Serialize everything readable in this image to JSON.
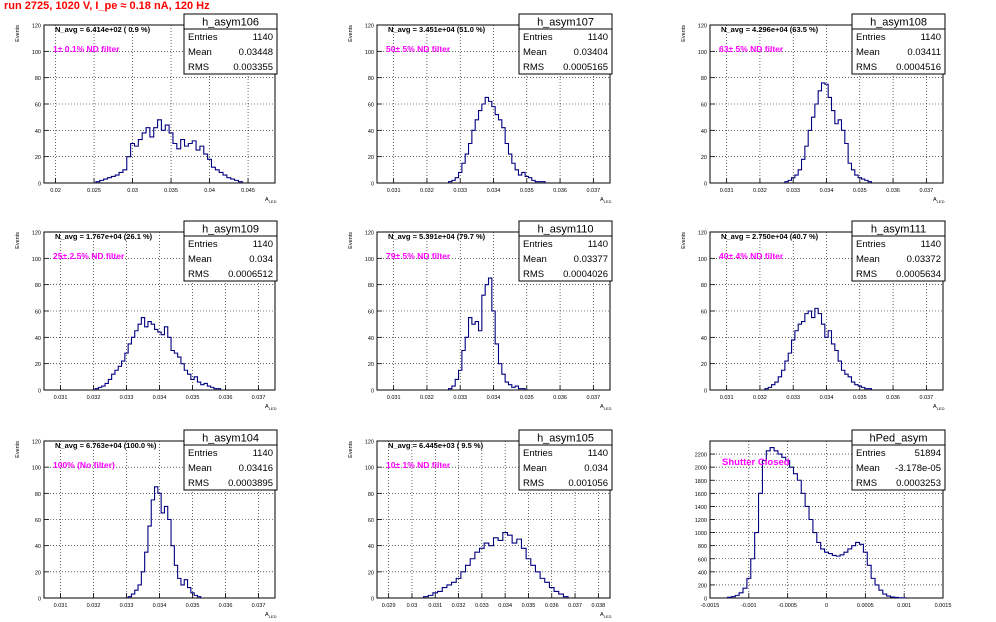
{
  "run_title": "run 2725,  1020 V, I_pe ≈ 0.18 nA, 120 Hz",
  "stat_labels": {
    "entries": "Entries",
    "mean": "Mean",
    "rms": "RMS"
  },
  "colors": {
    "histogram": "#000080",
    "annotation": "#ff00ff",
    "title": "#ff0000",
    "grid": "#000000"
  },
  "chart_data": [
    {
      "type": "bar",
      "name": "h_asym106",
      "stats": {
        "entries": "1140",
        "mean": "0.03448",
        "rms": "0.003355"
      },
      "navg": "N_avg = 6.414e+02 ( 0.9 %)",
      "filter": "1± 0.1% ND filter",
      "ylabel": "Events",
      "xlabel": "A",
      "xlabel_sub": "LED",
      "xlim": [
        0.0185,
        0.0485
      ],
      "ylim": [
        0,
        120
      ],
      "xticks": [
        0.02,
        0.025,
        0.03,
        0.035,
        0.04,
        0.045
      ],
      "xtick_labels": [
        "0.02",
        "0.025",
        "0.03",
        "0.035",
        "0.04",
        "0.045"
      ],
      "yticks": [
        0,
        20,
        40,
        60,
        80,
        100,
        120
      ],
      "ytick_labels": [
        "0",
        "20",
        "40",
        "60",
        "80",
        "100",
        "120"
      ],
      "x": [
        0.0255,
        0.026,
        0.0265,
        0.027,
        0.0275,
        0.028,
        0.0285,
        0.029,
        0.0295,
        0.03,
        0.0305,
        0.031,
        0.0315,
        0.032,
        0.0325,
        0.033,
        0.0335,
        0.034,
        0.0345,
        0.035,
        0.0355,
        0.036,
        0.0365,
        0.037,
        0.0375,
        0.038,
        0.0385,
        0.039,
        0.0395,
        0.04,
        0.0405,
        0.041,
        0.0415,
        0.042,
        0.0425,
        0.043,
        0.0435,
        0.044
      ],
      "values": [
        1,
        2,
        3,
        4,
        5,
        6,
        8,
        10,
        20,
        30,
        28,
        33,
        38,
        42,
        35,
        42,
        48,
        40,
        44,
        38,
        30,
        26,
        33,
        28,
        30,
        32,
        25,
        28,
        22,
        18,
        12,
        10,
        8,
        6,
        4,
        3,
        2,
        1
      ]
    },
    {
      "type": "bar",
      "name": "h_asym107",
      "stats": {
        "entries": "1140",
        "mean": "0.03404",
        "rms": "0.0005165"
      },
      "navg": "N_avg = 3.451e+04 (51.0 %)",
      "filter": "50± 5% ND filter",
      "ylabel": "Events",
      "xlabel": "A",
      "xlabel_sub": "LED",
      "xlim": [
        0.0305,
        0.0375
      ],
      "ylim": [
        0,
        120
      ],
      "xticks": [
        0.031,
        0.032,
        0.033,
        0.034,
        0.035,
        0.036,
        0.037
      ],
      "xtick_labels": [
        "0.031",
        "0.032",
        "0.033",
        "0.034",
        "0.035",
        "0.036",
        "0.037"
      ],
      "yticks": [
        0,
        20,
        40,
        60,
        80,
        100,
        120
      ],
      "ytick_labels": [
        "0",
        "20",
        "40",
        "60",
        "80",
        "100",
        "120"
      ],
      "x": [
        0.0327,
        0.0328,
        0.0329,
        0.033,
        0.0331,
        0.0332,
        0.0333,
        0.0334,
        0.0335,
        0.0336,
        0.0337,
        0.0338,
        0.0339,
        0.034,
        0.0341,
        0.0342,
        0.0343,
        0.0344,
        0.0345,
        0.0346,
        0.0347,
        0.0348,
        0.0349,
        0.035,
        0.0351,
        0.0352,
        0.0353,
        0.0354,
        0.0355
      ],
      "values": [
        1,
        2,
        4,
        8,
        15,
        22,
        30,
        40,
        48,
        55,
        60,
        65,
        62,
        58,
        52,
        48,
        42,
        30,
        22,
        15,
        10,
        6,
        8,
        5,
        4,
        2,
        1,
        1,
        1
      ]
    },
    {
      "type": "bar",
      "name": "h_asym108",
      "stats": {
        "entries": "1140",
        "mean": "0.03411",
        "rms": "0.0004516"
      },
      "navg": "N_avg = 4.296e+04 (63.5 %)",
      "filter": "63± 5% ND filter",
      "ylabel": "Events",
      "xlabel": "A",
      "xlabel_sub": "LED",
      "xlim": [
        0.0305,
        0.0375
      ],
      "ylim": [
        0,
        120
      ],
      "xticks": [
        0.031,
        0.032,
        0.033,
        0.034,
        0.035,
        0.036,
        0.037
      ],
      "xtick_labels": [
        "0.031",
        "0.032",
        "0.033",
        "0.034",
        "0.035",
        "0.036",
        "0.037"
      ],
      "yticks": [
        0,
        20,
        40,
        60,
        80,
        100,
        120
      ],
      "ytick_labels": [
        "0",
        "20",
        "40",
        "60",
        "80",
        "100",
        "120"
      ],
      "x": [
        0.0328,
        0.0329,
        0.033,
        0.0331,
        0.0332,
        0.0333,
        0.0334,
        0.0335,
        0.0336,
        0.0337,
        0.0338,
        0.0339,
        0.034,
        0.0341,
        0.0342,
        0.0343,
        0.0344,
        0.0345,
        0.0346,
        0.0347,
        0.0348,
        0.0349,
        0.035,
        0.0351,
        0.0352,
        0.0353
      ],
      "values": [
        1,
        2,
        4,
        6,
        10,
        18,
        28,
        40,
        50,
        60,
        70,
        76,
        75,
        65,
        55,
        45,
        48,
        40,
        30,
        15,
        10,
        6,
        4,
        3,
        2,
        1
      ]
    },
    {
      "type": "bar",
      "name": "h_asym109",
      "stats": {
        "entries": "1140",
        "mean": "0.034",
        "rms": "0.0006512"
      },
      "navg": "N_avg = 1.767e+04 (26.1 %)",
      "filter": "25± 2.5% ND filter",
      "ylabel": "Events",
      "xlabel": "A",
      "xlabel_sub": "LED",
      "xlim": [
        0.0305,
        0.0375
      ],
      "ylim": [
        0,
        120
      ],
      "xticks": [
        0.031,
        0.032,
        0.033,
        0.034,
        0.035,
        0.036,
        0.037
      ],
      "xtick_labels": [
        "0.031",
        "0.032",
        "0.033",
        "0.034",
        "0.035",
        "0.036",
        "0.037"
      ],
      "yticks": [
        0,
        20,
        40,
        60,
        80,
        100,
        120
      ],
      "ytick_labels": [
        "0",
        "20",
        "40",
        "60",
        "80",
        "100",
        "120"
      ],
      "x": [
        0.0321,
        0.0322,
        0.0323,
        0.0324,
        0.0325,
        0.0326,
        0.0327,
        0.0328,
        0.0329,
        0.033,
        0.0331,
        0.0332,
        0.0333,
        0.0334,
        0.0335,
        0.0336,
        0.0337,
        0.0338,
        0.0339,
        0.034,
        0.0341,
        0.0342,
        0.0343,
        0.0344,
        0.0345,
        0.0346,
        0.0347,
        0.0348,
        0.0349,
        0.035,
        0.0351,
        0.0352,
        0.0353,
        0.0354,
        0.0355,
        0.0356,
        0.0357,
        0.0358
      ],
      "values": [
        1,
        2,
        3,
        5,
        8,
        12,
        15,
        18,
        22,
        28,
        35,
        40,
        45,
        50,
        55,
        48,
        52,
        50,
        46,
        44,
        42,
        48,
        40,
        30,
        28,
        25,
        20,
        15,
        12,
        8,
        10,
        6,
        4,
        5,
        3,
        2,
        1,
        1
      ]
    },
    {
      "type": "bar",
      "name": "h_asym110",
      "stats": {
        "entries": "1140",
        "mean": "0.03377",
        "rms": "0.0004026"
      },
      "navg": "N_avg = 5.391e+04 (79.7 %)",
      "filter": "79± 5% ND filter",
      "ylabel": "Events",
      "xlabel": "A",
      "xlabel_sub": "LED",
      "xlim": [
        0.0305,
        0.0375
      ],
      "ylim": [
        0,
        120
      ],
      "xticks": [
        0.031,
        0.032,
        0.033,
        0.034,
        0.035,
        0.036,
        0.037
      ],
      "xtick_labels": [
        "0.031",
        "0.032",
        "0.033",
        "0.034",
        "0.035",
        "0.036",
        "0.037"
      ],
      "yticks": [
        0,
        20,
        40,
        60,
        80,
        100,
        120
      ],
      "ytick_labels": [
        "0",
        "20",
        "40",
        "60",
        "80",
        "100",
        "120"
      ],
      "x": [
        0.0327,
        0.0328,
        0.0329,
        0.033,
        0.0331,
        0.0332,
        0.0333,
        0.0334,
        0.0335,
        0.0336,
        0.0337,
        0.0338,
        0.0339,
        0.034,
        0.0341,
        0.0342,
        0.0343,
        0.0344,
        0.0345,
        0.0346,
        0.0347,
        0.0348,
        0.0349
      ],
      "values": [
        1,
        3,
        8,
        15,
        30,
        40,
        55,
        50,
        52,
        45,
        72,
        80,
        85,
        60,
        35,
        20,
        12,
        6,
        4,
        2,
        3,
        1,
        1
      ]
    },
    {
      "type": "bar",
      "name": "h_asym111",
      "stats": {
        "entries": "1140",
        "mean": "0.03372",
        "rms": "0.0005634"
      },
      "navg": "N_avg = 2.750e+04 (40.7 %)",
      "filter": "40± 4% ND filter",
      "ylabel": "Events",
      "xlabel": "A",
      "xlabel_sub": "LED",
      "xlim": [
        0.0305,
        0.0375
      ],
      "ylim": [
        0,
        120
      ],
      "xticks": [
        0.031,
        0.032,
        0.033,
        0.034,
        0.035,
        0.036,
        0.037
      ],
      "xtick_labels": [
        "0.031",
        "0.032",
        "0.033",
        "0.034",
        "0.035",
        "0.036",
        "0.037"
      ],
      "yticks": [
        0,
        20,
        40,
        60,
        80,
        100,
        120
      ],
      "ytick_labels": [
        "0",
        "20",
        "40",
        "60",
        "80",
        "100",
        "120"
      ],
      "x": [
        0.0322,
        0.0323,
        0.0324,
        0.0325,
        0.0326,
        0.0327,
        0.0328,
        0.0329,
        0.033,
        0.0331,
        0.0332,
        0.0333,
        0.0334,
        0.0335,
        0.0336,
        0.0337,
        0.0338,
        0.0339,
        0.034,
        0.0341,
        0.0342,
        0.0343,
        0.0344,
        0.0345,
        0.0346,
        0.0347,
        0.0348,
        0.0349,
        0.035,
        0.0351,
        0.0352,
        0.0353
      ],
      "values": [
        1,
        2,
        4,
        6,
        10,
        15,
        22,
        28,
        38,
        45,
        50,
        52,
        58,
        60,
        55,
        62,
        58,
        50,
        40,
        45,
        35,
        30,
        22,
        15,
        12,
        10,
        6,
        4,
        3,
        2,
        1,
        1
      ]
    },
    {
      "type": "bar",
      "name": "h_asym104",
      "stats": {
        "entries": "1140",
        "mean": "0.03416",
        "rms": "0.0003895"
      },
      "navg": "N_avg = 6.763e+04 (100.0 %)",
      "filter": "100% (No filter)",
      "ylabel": "Events",
      "xlabel": "A",
      "xlabel_sub": "LED",
      "xlim": [
        0.0305,
        0.0375
      ],
      "ylim": [
        0,
        120
      ],
      "xticks": [
        0.031,
        0.032,
        0.033,
        0.034,
        0.035,
        0.036,
        0.037
      ],
      "xtick_labels": [
        "0.031",
        "0.032",
        "0.033",
        "0.034",
        "0.035",
        "0.036",
        "0.037"
      ],
      "yticks": [
        0,
        20,
        40,
        60,
        80,
        100,
        120
      ],
      "ytick_labels": [
        "0",
        "20",
        "40",
        "60",
        "80",
        "100",
        "120"
      ],
      "x": [
        0.0331,
        0.0332,
        0.0333,
        0.0334,
        0.0335,
        0.0336,
        0.0337,
        0.0338,
        0.0339,
        0.034,
        0.0341,
        0.0342,
        0.0343,
        0.0344,
        0.0345,
        0.0346,
        0.0347,
        0.0348,
        0.0349,
        0.035,
        0.0351,
        0.0352
      ],
      "values": [
        1,
        3,
        6,
        10,
        20,
        35,
        55,
        75,
        85,
        80,
        65,
        70,
        60,
        40,
        25,
        15,
        10,
        14,
        8,
        4,
        2,
        1
      ]
    },
    {
      "type": "bar",
      "name": "h_asym105",
      "stats": {
        "entries": "1140",
        "mean": "0.034",
        "rms": "0.001056"
      },
      "navg": "N_avg = 6.445e+03 ( 9.5 %)",
      "filter": "10± 1% ND filter",
      "ylabel": "Events",
      "xlabel": "A",
      "xlabel_sub": "LED",
      "xlim": [
        0.0285,
        0.0385
      ],
      "ylim": [
        0,
        120
      ],
      "xticks": [
        0.029,
        0.03,
        0.031,
        0.032,
        0.033,
        0.034,
        0.035,
        0.036,
        0.037,
        0.038
      ],
      "xtick_labels": [
        "0.029",
        "0.03",
        "0.031",
        "0.032",
        "0.033",
        "0.034",
        "0.035",
        "0.036",
        "0.037",
        "0.038"
      ],
      "yticks": [
        0,
        20,
        40,
        60,
        80,
        100,
        120
      ],
      "ytick_labels": [
        "0",
        "20",
        "40",
        "60",
        "80",
        "100",
        "120"
      ],
      "x": [
        0.0306,
        0.0308,
        0.031,
        0.0312,
        0.0314,
        0.0316,
        0.0318,
        0.032,
        0.0322,
        0.0324,
        0.0326,
        0.0328,
        0.033,
        0.0332,
        0.0334,
        0.0336,
        0.0338,
        0.034,
        0.0342,
        0.0344,
        0.0346,
        0.0348,
        0.035,
        0.0352,
        0.0354,
        0.0356,
        0.0358,
        0.036,
        0.0362,
        0.0364,
        0.0366
      ],
      "values": [
        1,
        2,
        4,
        5,
        8,
        10,
        12,
        15,
        20,
        25,
        30,
        35,
        38,
        42,
        40,
        46,
        44,
        50,
        48,
        42,
        45,
        38,
        30,
        25,
        20,
        15,
        12,
        8,
        5,
        3,
        1
      ]
    },
    {
      "type": "bar",
      "name": "hPed_asym",
      "stats": {
        "entries": "51894",
        "mean": "-3.178e-05",
        "rms": "0.0003253"
      },
      "filter": "Shutter Closed",
      "ylabel": "",
      "xlabel": "",
      "xlabel_sub": "",
      "xlim": [
        -0.0015,
        0.0015
      ],
      "ylim": [
        0,
        2400
      ],
      "xticks": [
        -0.0015,
        -0.001,
        -0.0005,
        0,
        0.0005,
        0.001,
        0.0015
      ],
      "xtick_labels": [
        "-0.0015",
        "-0.001",
        "-0.0005",
        "0",
        "0.0005",
        "0.001",
        "0.0015"
      ],
      "yticks": [
        0,
        200,
        400,
        600,
        800,
        1000,
        1200,
        1400,
        1600,
        1800,
        2000,
        2200
      ],
      "ytick_labels": [
        "0",
        "200",
        "400",
        "600",
        "800",
        "1000",
        "1200",
        "1400",
        "1600",
        "1800",
        "2000",
        "2200"
      ],
      "x": [
        -0.00125,
        -0.0012,
        -0.00115,
        -0.0011,
        -0.00105,
        -0.001,
        -0.00095,
        -0.0009,
        -0.00085,
        -0.0008,
        -0.00075,
        -0.0007,
        -0.00065,
        -0.0006,
        -0.00055,
        -0.0005,
        -0.00045,
        -0.0004,
        -0.00035,
        -0.0003,
        -0.00025,
        -0.0002,
        -0.00015,
        -0.0001,
        -5e-05,
        0,
        5e-05,
        0.0001,
        0.00015,
        0.0002,
        0.00025,
        0.0003,
        0.00035,
        0.0004,
        0.00045,
        0.0005,
        0.00055,
        0.0006,
        0.00065,
        0.0007,
        0.00075,
        0.0008,
        0.00085,
        0.0009,
        0.00095,
        0.001
      ],
      "values": [
        10,
        20,
        40,
        80,
        150,
        300,
        600,
        1000,
        1600,
        2100,
        2250,
        2300,
        2250,
        2200,
        2150,
        2100,
        2000,
        1900,
        1800,
        1600,
        1400,
        1200,
        1000,
        850,
        750,
        700,
        680,
        650,
        640,
        660,
        700,
        750,
        800,
        850,
        820,
        700,
        500,
        300,
        200,
        120,
        60,
        30,
        15,
        8,
        4,
        2
      ]
    }
  ]
}
